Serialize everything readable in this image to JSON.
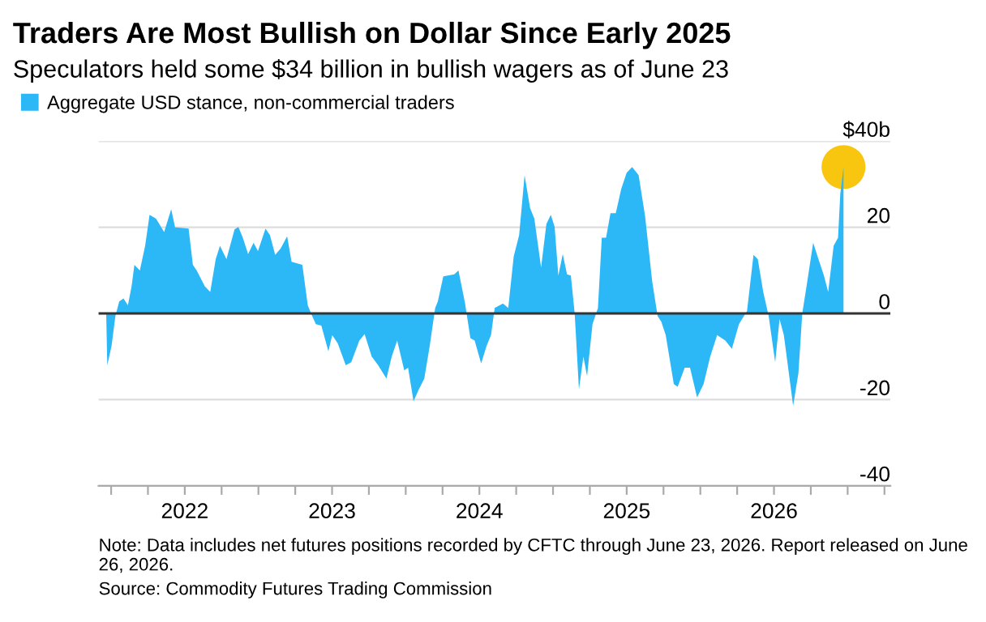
{
  "chart_data": {
    "type": "area",
    "title": "Traders Are Most Bullish on Dollar Since Early 2025",
    "subtitle": "Speculators held some $34 billion in bullish wagers as of June 23",
    "annotations": [
      "Note: Data includes net futures positions recorded by CFTC through June 23, 2026. Report released on June 26, 2026.",
      "Source: Commodity Futures Trading Commission"
    ],
    "series": [
      {
        "name": "Aggregate USD stance, non-commercial traders",
        "color": "#2cb7f6",
        "x": [
          2021.467,
          2021.474,
          2021.503,
          2021.529,
          2021.555,
          2021.584,
          2021.614,
          2021.639,
          2021.658,
          2021.695,
          2021.731,
          2021.761,
          2021.805,
          2021.86,
          2021.908,
          2021.934,
          2021.971,
          2022.026,
          2022.055,
          2022.081,
          2022.136,
          2022.173,
          2022.21,
          2022.239,
          2022.283,
          2022.338,
          2022.364,
          2022.394,
          2022.43,
          2022.467,
          2022.497,
          2022.548,
          2022.578,
          2022.614,
          2022.651,
          2022.695,
          2022.725,
          2022.769,
          2022.798,
          2022.835,
          2022.865,
          2022.89,
          2022.927,
          2022.975,
          2023.001,
          2023.038,
          2023.093,
          2023.13,
          2023.185,
          2023.221,
          2023.269,
          2023.313,
          2023.369,
          2023.405,
          2023.442,
          2023.49,
          2023.516,
          2023.553,
          2023.589,
          2023.626,
          2023.663,
          2023.7,
          2023.718,
          2023.755,
          2023.829,
          2023.858,
          2023.902,
          2023.939,
          2023.968,
          2024.012,
          2024.049,
          2024.079,
          2024.104,
          2024.16,
          2024.196,
          2024.233,
          2024.27,
          2024.307,
          2024.344,
          2024.373,
          2024.419,
          2024.455,
          2024.485,
          2024.511,
          2024.536,
          2024.566,
          2024.595,
          2024.621,
          2024.647,
          2024.676,
          2024.706,
          2024.731,
          2024.768,
          2024.805,
          2024.831,
          2024.86,
          2024.89,
          2024.926,
          2024.963,
          2025.0,
          2025.037,
          2025.081,
          2025.125,
          2025.173,
          2025.21,
          2025.235,
          2025.265,
          2025.32,
          2025.346,
          2025.394,
          2025.43,
          2025.478,
          2025.522,
          2025.567,
          2025.614,
          2025.67,
          2025.714,
          2025.762,
          2025.817,
          2025.861,
          2025.89,
          2025.927,
          2025.964,
          2026.008,
          2026.038,
          2026.067,
          2026.13,
          2026.166,
          2026.192,
          2026.221,
          2026.266,
          2026.302,
          2026.339,
          2026.368,
          2026.405,
          2026.435,
          2026.45,
          2026.472
        ],
        "values": [
          -0.6,
          -12,
          -7.5,
          -0.6,
          2.8,
          3.5,
          1.9,
          6.3,
          11.3,
          10,
          15.7,
          22.9,
          22,
          18.9,
          24.2,
          20,
          19.9,
          19.7,
          11.3,
          10,
          6.3,
          5,
          12.6,
          15.7,
          12.6,
          19.5,
          20.1,
          17.6,
          13.8,
          16.4,
          14.5,
          19.7,
          18.2,
          13.6,
          15.1,
          17.9,
          12,
          11.6,
          11.3,
          1.9,
          -0.6,
          -2.5,
          -2.8,
          -8.8,
          -5,
          -6.9,
          -12,
          -11.3,
          -6.3,
          -4.8,
          -10,
          -12,
          -15.1,
          -10,
          -6.3,
          -13.2,
          -12.6,
          -20.4,
          -17.6,
          -15.1,
          -7.5,
          1.3,
          2.8,
          8.6,
          9.1,
          10,
          2.5,
          -5.7,
          -6.3,
          -11.6,
          -7.5,
          -5,
          1.3,
          2.3,
          1.3,
          13.2,
          18.2,
          32.1,
          24.5,
          22,
          10.7,
          20.8,
          22.9,
          20.1,
          8.8,
          13.8,
          9.1,
          8.8,
          0,
          -17.6,
          -10,
          -14.5,
          -2.5,
          1.3,
          17.6,
          17.6,
          23.3,
          23.3,
          28.9,
          32.7,
          34,
          32.1,
          22.6,
          7.5,
          -0.6,
          -1.9,
          -5,
          -16.4,
          -17,
          -12.6,
          -12.6,
          -19.5,
          -16.4,
          -10,
          -5,
          -6.3,
          -8.2,
          -2.5,
          0.6,
          13.6,
          12.6,
          5,
          -0.6,
          -11.3,
          -1.3,
          -5,
          -21.4,
          -13.8,
          0,
          6.3,
          16.4,
          12.6,
          8.8,
          5,
          15.7,
          17.6,
          27.7,
          34
        ]
      },
      {
        "type": "scatter",
        "marker": "circle",
        "color": "#f8c50f",
        "x": [
          2026.472
        ],
        "values": [
          34
        ]
      }
    ],
    "ref_lines": [
      {
        "axis": "y",
        "value": 0,
        "color": "#333333"
      }
    ],
    "xlim": [
      2021.415,
      2026.79
    ],
    "xticks": [
      {
        "value": 2021.5,
        "label": null
      },
      {
        "value": 2021.75,
        "label": null
      },
      2022,
      {
        "value": 2022.25,
        "label": null
      },
      {
        "value": 2022.5,
        "label": null
      },
      {
        "value": 2022.75,
        "label": null
      },
      2023,
      {
        "value": 2023.25,
        "label": null
      },
      {
        "value": 2023.5,
        "label": null
      },
      {
        "value": 2023.75,
        "label": null
      },
      2024,
      {
        "value": 2024.25,
        "label": null
      },
      {
        "value": 2024.5,
        "label": null
      },
      {
        "value": 2024.75,
        "label": null
      },
      2025,
      {
        "value": 2025.25,
        "label": null
      },
      {
        "value": 2025.5,
        "label": null
      },
      {
        "value": 2025.75,
        "label": null
      },
      2026,
      {
        "value": 2026.25,
        "label": null
      },
      {
        "value": 2026.5,
        "label": null
      },
      {
        "value": 2026.75,
        "label": null
      }
    ],
    "ylim": [
      -40,
      40
    ],
    "yticks": [
      -40,
      -20,
      0,
      20,
      {
        "value": 40,
        "label": "$40b"
      }
    ],
    "grid": "y",
    "legend": "top left"
  }
}
